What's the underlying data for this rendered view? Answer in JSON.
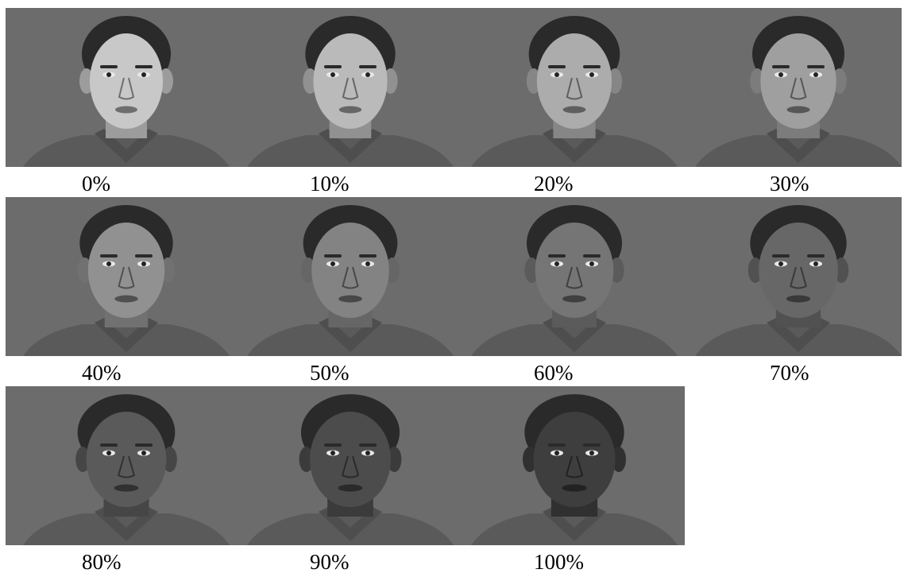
{
  "background_color": "#6c6c6c",
  "skin_light": "#c8c8c8",
  "skin_dark": "#3e3e3e",
  "hair_color": "#2a2a2a",
  "shirt_color": "#5a5a5a",
  "rows": [
    [
      {
        "label": "0%",
        "morph": 0.0
      },
      {
        "label": "10%",
        "morph": 0.1
      },
      {
        "label": "20%",
        "morph": 0.2
      },
      {
        "label": "30%",
        "morph": 0.3
      }
    ],
    [
      {
        "label": "40%",
        "morph": 0.4
      },
      {
        "label": "50%",
        "morph": 0.5
      },
      {
        "label": "60%",
        "morph": 0.6
      },
      {
        "label": "70%",
        "morph": 0.7
      }
    ],
    [
      {
        "label": "80%",
        "morph": 0.8
      },
      {
        "label": "90%",
        "morph": 0.9
      },
      {
        "label": "100%",
        "morph": 1.0
      }
    ]
  ]
}
